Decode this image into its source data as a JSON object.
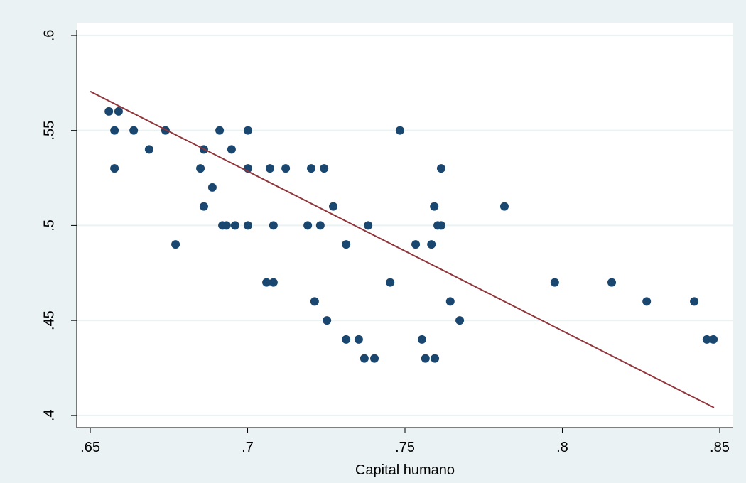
{
  "chart_data": {
    "type": "scatter",
    "xlabel": "Capital humano",
    "xlim": [
      0.6457,
      0.8543
    ],
    "ylim": [
      0.3936,
      0.6067
    ],
    "xticks": [
      {
        "value": 0.65,
        "label": ".65"
      },
      {
        "value": 0.7,
        "label": ".7"
      },
      {
        "value": 0.75,
        "label": ".75"
      },
      {
        "value": 0.8,
        "label": ".8"
      },
      {
        "value": 0.85,
        "label": ".85"
      }
    ],
    "yticks": [
      {
        "value": 0.4,
        "label": ".4"
      },
      {
        "value": 0.45,
        "label": ".45"
      },
      {
        "value": 0.5,
        "label": ".5"
      },
      {
        "value": 0.55,
        "label": ".55"
      },
      {
        "value": 0.6,
        "label": ".6"
      }
    ],
    "grid": true,
    "series": [
      {
        "type": "scatter",
        "color": "#1a476f",
        "x": [
          0.6559,
          0.659,
          0.6577,
          0.6577,
          0.6638,
          0.6687,
          0.6739,
          0.6771,
          0.685,
          0.6861,
          0.6861,
          0.6888,
          0.6911,
          0.692,
          0.6933,
          0.6949,
          0.696,
          0.7001,
          0.7001,
          0.7001,
          0.706,
          0.7071,
          0.7082,
          0.7082,
          0.7121,
          0.7191,
          0.7202,
          0.7213,
          0.7231,
          0.7243,
          0.7252,
          0.7272,
          0.7313,
          0.7313,
          0.7353,
          0.7371,
          0.7383,
          0.7403,
          0.7453,
          0.7484,
          0.7534,
          0.7554,
          0.7565,
          0.7584,
          0.7593,
          0.7595,
          0.7604,
          0.7615,
          0.7615,
          0.7644,
          0.7674,
          0.7816,
          0.7976,
          0.8157,
          0.8268,
          0.8419,
          0.8459,
          0.848
        ],
        "values": [
          0.56,
          0.56,
          0.55,
          0.53,
          0.55,
          0.54,
          0.55,
          0.49,
          0.53,
          0.54,
          0.51,
          0.52,
          0.55,
          0.5,
          0.5,
          0.54,
          0.5,
          0.55,
          0.53,
          0.5,
          0.47,
          0.53,
          0.47,
          0.5,
          0.53,
          0.5,
          0.53,
          0.46,
          0.5,
          0.53,
          0.45,
          0.51,
          0.49,
          0.44,
          0.44,
          0.43,
          0.5,
          0.43,
          0.47,
          0.55,
          0.49,
          0.44,
          0.43,
          0.49,
          0.51,
          0.43,
          0.5,
          0.5,
          0.53,
          0.46,
          0.45,
          0.51,
          0.47,
          0.47,
          0.46,
          0.46,
          0.44,
          0.44
        ]
      },
      {
        "type": "line",
        "color": "#90353b",
        "x": [
          0.65,
          0.8482
        ],
        "values": [
          0.5705,
          0.4041
        ]
      }
    ]
  }
}
